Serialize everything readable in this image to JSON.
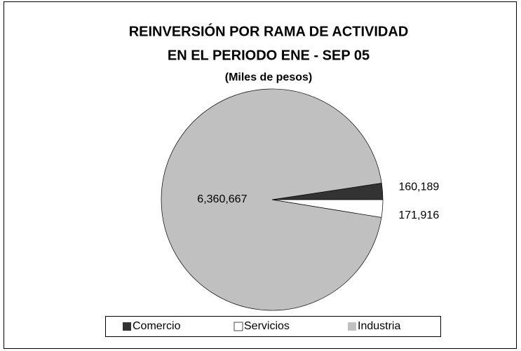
{
  "chart_data": {
    "type": "pie",
    "title": "REINVERSIÓN POR RAMA DE ACTIVIDAD",
    "title_line2": "EN EL PERIODO ENE - SEP 05",
    "subtitle": "(Miles de pesos)",
    "categories": [
      "Comercio",
      "Servicios",
      "Industria"
    ],
    "values": [
      160189,
      171916,
      6360667
    ],
    "value_labels": [
      "160,189",
      "171,916",
      "6,360,667"
    ],
    "colors": [
      "#333333",
      "#ffffff",
      "#c0c0c0"
    ],
    "legend": "bottom"
  }
}
